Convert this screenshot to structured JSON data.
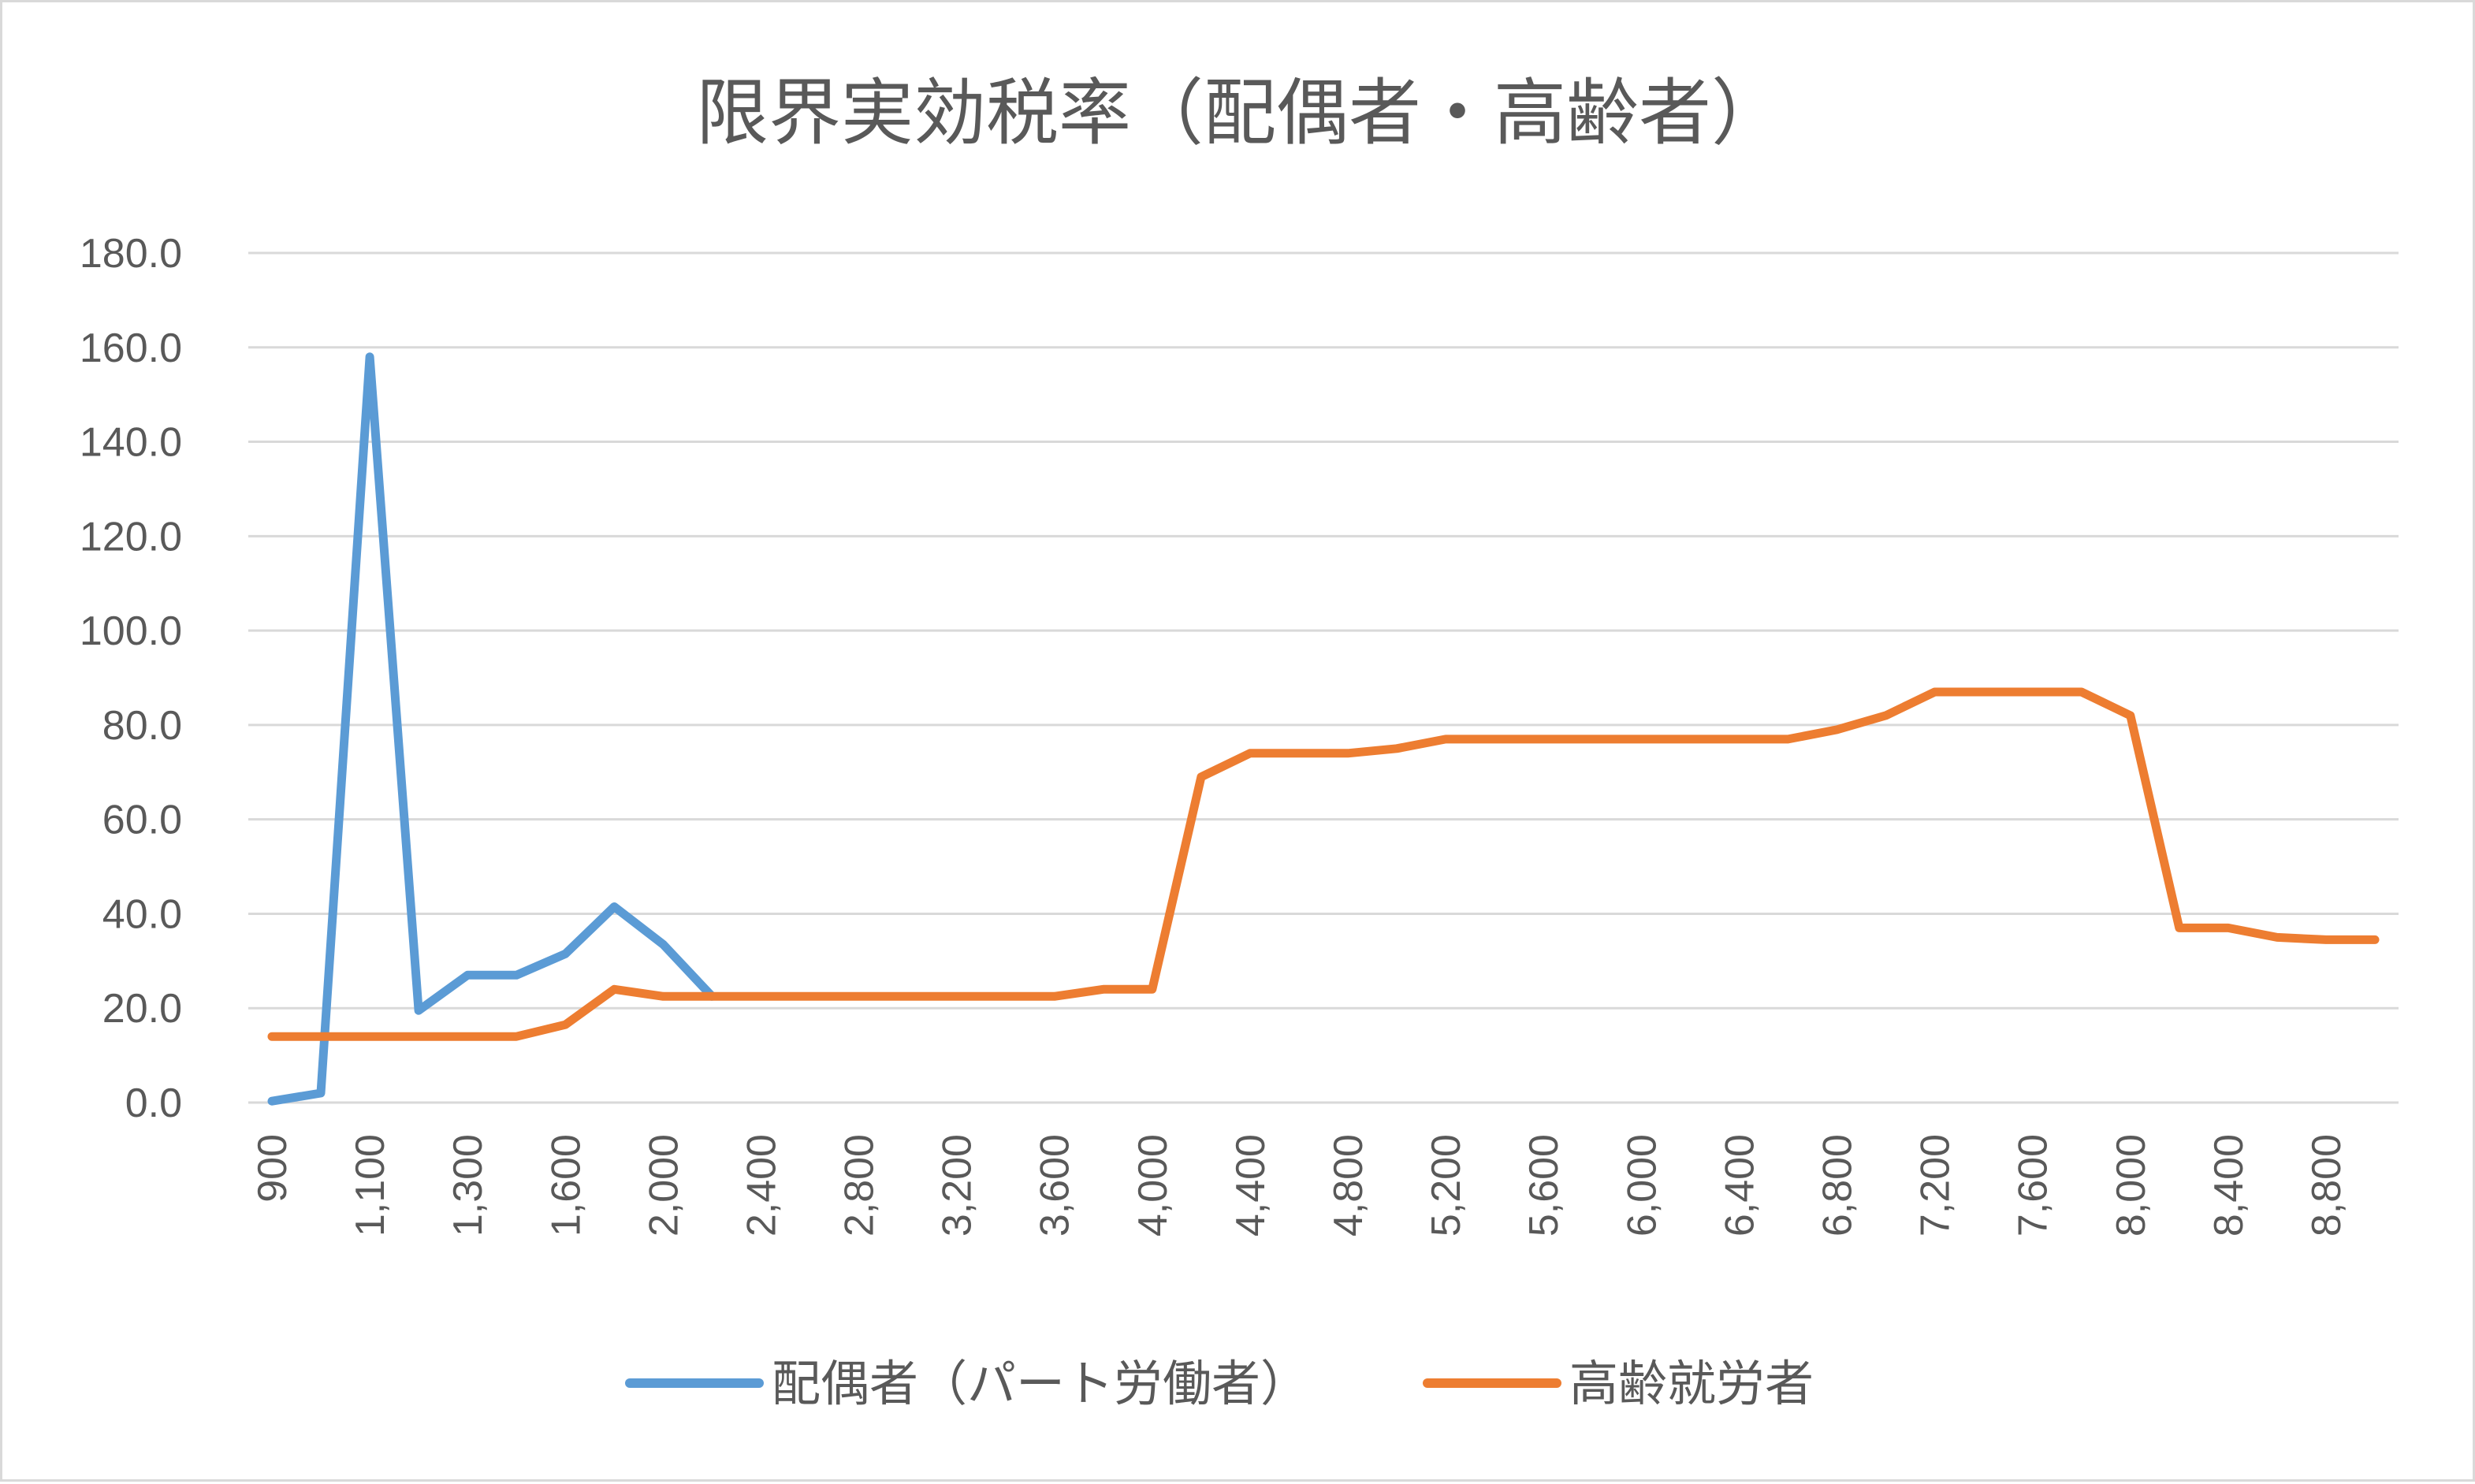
{
  "chart_data": {
    "type": "line",
    "title": "限界実効税率（配偶者・高齢者）",
    "xlabel": "",
    "ylabel": "",
    "ylim": [
      0,
      180
    ],
    "yticks": [
      "0.0",
      "20.0",
      "40.0",
      "60.0",
      "80.0",
      "100.0",
      "120.0",
      "140.0",
      "160.0",
      "180.0"
    ],
    "x": [
      900,
      1000,
      1100,
      1200,
      1300,
      1400,
      1600,
      1800,
      2000,
      2200,
      2400,
      2600,
      2800,
      3000,
      3200,
      3400,
      3600,
      3800,
      4000,
      4200,
      4400,
      4600,
      4800,
      5000,
      5200,
      5400,
      5600,
      5800,
      6000,
      6200,
      6400,
      6600,
      6800,
      7000,
      7200,
      7400,
      7600,
      7800,
      8000,
      8200,
      8400,
      8600,
      8800,
      9000
    ],
    "xticks": [
      "900",
      "1,100",
      "1,300",
      "1,600",
      "2,000",
      "2,400",
      "2,800",
      "3,200",
      "3,600",
      "4,000",
      "4,400",
      "4,800",
      "5,200",
      "5,600",
      "6,000",
      "6,400",
      "6,800",
      "7,200",
      "7,600",
      "8,000",
      "8,400",
      "8,800"
    ],
    "grid": true,
    "legend": "bottom",
    "series": [
      {
        "name": "配偶者（パート労働者）",
        "color": "#5b9bd5",
        "values": [
          0.3,
          2.0,
          158.0,
          19.5,
          27.0,
          27.0,
          31.5,
          41.5,
          33.5,
          22.5,
          null,
          null,
          null,
          null,
          null,
          null,
          null,
          null,
          null,
          null,
          null,
          null,
          null,
          null,
          null,
          null,
          null,
          null,
          null,
          null,
          null,
          null,
          null,
          null,
          null,
          null,
          null,
          null,
          null,
          null,
          null,
          null,
          null,
          null
        ]
      },
      {
        "name": "高齢就労者",
        "color": "#ed7d31",
        "values": [
          14.0,
          14.0,
          14.0,
          14.0,
          14.0,
          14.0,
          16.5,
          24.0,
          22.5,
          22.5,
          22.5,
          22.5,
          22.5,
          22.5,
          22.5,
          22.5,
          22.5,
          24.0,
          24.0,
          69.0,
          74.0,
          74.0,
          74.0,
          75.0,
          77.0,
          77.0,
          77.0,
          77.0,
          77.0,
          77.0,
          77.0,
          77.0,
          79.0,
          82.0,
          87.0,
          87.0,
          87.0,
          87.0,
          82.0,
          37.0,
          37.0,
          35.0,
          34.5,
          34.5
        ]
      }
    ]
  }
}
